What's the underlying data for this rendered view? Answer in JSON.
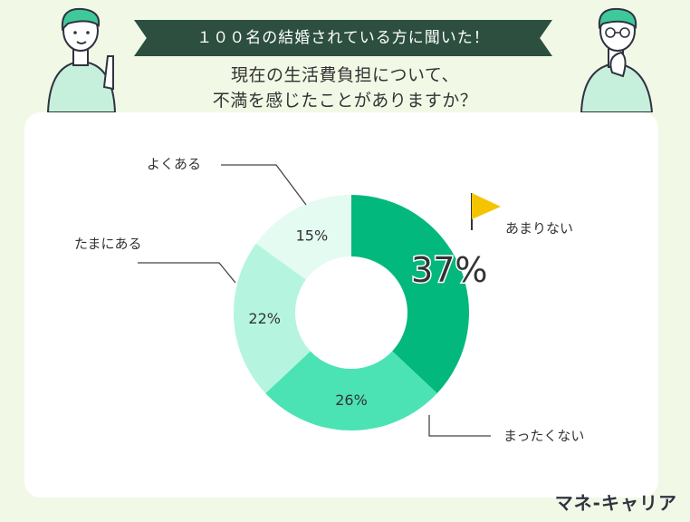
{
  "header": {
    "banner": "１００名の結婚されている方に聞いた！",
    "question_line1": "現在の生活費負担について、",
    "question_line2": "不満を感じたことがありますか？"
  },
  "brand": "マネ-キャリア",
  "colors": {
    "background": "#f1f9e6",
    "banner": "#2c4f40",
    "slice_amari": "#03b87c",
    "slice_mattaku": "#4be3b3",
    "slice_tamani": "#b5f5e0",
    "slice_yoku": "#e4fbf2",
    "flag": "#f5c400"
  },
  "chart_data": {
    "type": "pie",
    "donut": true,
    "categories": [
      "あまりない",
      "まったくない",
      "たまにある",
      "よくある"
    ],
    "values": [
      37,
      26,
      22,
      15
    ],
    "value_labels": [
      "37%",
      "26%",
      "22%",
      "15%"
    ],
    "unit": "%",
    "legend": "none"
  }
}
